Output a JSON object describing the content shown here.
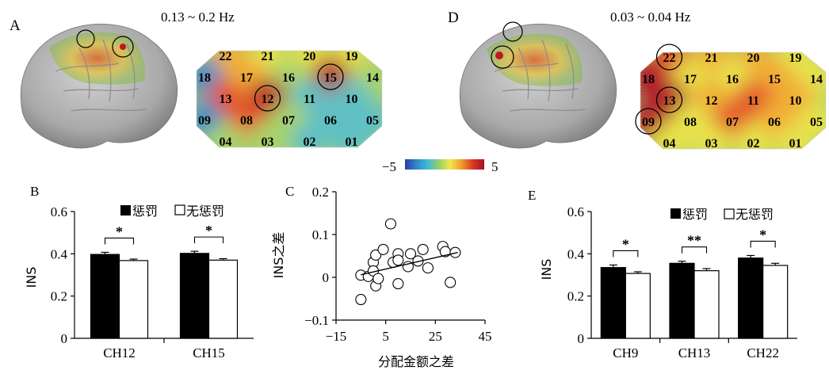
{
  "panels": {
    "A": {
      "letter": "A",
      "band": "0.13 ~ 0.2 Hz",
      "highlighted": [
        "12",
        "15"
      ],
      "hot": {
        "15": 1.0,
        "12": 1.0,
        "13": 0.6,
        "08": 0.65,
        "17": 0.55,
        "22": 0.45,
        "21": 0.3,
        "20": 0.35,
        "19": 0.3,
        "18": -0.4,
        "16": 0.05,
        "11": -0.1,
        "10": -0.15,
        "07": 0.1,
        "06": -0.2,
        "09": -0.5,
        "05": -0.3,
        "04": 0.05,
        "03": 0.15,
        "02": -0.1,
        "01": -0.2,
        "14": 0.0
      }
    },
    "D": {
      "letter": "D",
      "band": "0.03 ~ 0.04 Hz",
      "highlighted": [
        "22",
        "13",
        "09"
      ],
      "hot": {
        "13": 1.0,
        "18": 0.95,
        "09": 0.9,
        "22": 0.7,
        "12": 0.45,
        "11": 0.7,
        "07": 0.65,
        "06": 0.55,
        "10": 0.55,
        "15": 0.4,
        "16": 0.3,
        "14": 0.2,
        "17": 0.3,
        "21": 0.55,
        "20": 0.45,
        "19": 0.35,
        "08": 0.2,
        "04": 0.35,
        "03": 0.3,
        "02": 0.35,
        "01": 0.25,
        "05": 0.2
      }
    }
  },
  "colorbar": {
    "min": "−5",
    "max": "5",
    "colors": [
      "#2b3fa6",
      "#2f86c9",
      "#3fbcd1",
      "#98d06a",
      "#f2e64a",
      "#f29a2e",
      "#d83820",
      "#a3122a"
    ]
  },
  "channel_labels": [
    "22",
    "21",
    "20",
    "19",
    "18",
    "17",
    "16",
    "15",
    "14",
    "13",
    "12",
    "11",
    "10",
    "09",
    "08",
    "07",
    "06",
    "05",
    "04",
    "03",
    "02",
    "01"
  ],
  "legend": {
    "punish": "惩罚",
    "no_punish": "无惩罚"
  },
  "colors": {
    "punish": "#000000",
    "no_punish": "#ffffff"
  },
  "chart_data": [
    {
      "panel": "B",
      "type": "bar",
      "ylabel": "INS",
      "ylim": [
        0,
        0.6
      ],
      "yticks": [
        "0",
        "0.2",
        "0.4",
        "0.6"
      ],
      "categories": [
        "CH12",
        "CH15"
      ],
      "series": [
        {
          "name": "惩罚",
          "values": [
            0.397,
            0.402
          ],
          "errors": [
            0.01,
            0.01
          ]
        },
        {
          "name": "无惩罚",
          "values": [
            0.368,
            0.37
          ],
          "errors": [
            0.007,
            0.007
          ]
        }
      ],
      "significance": [
        "*",
        "*"
      ],
      "legend_position": "top"
    },
    {
      "panel": "C",
      "type": "scatter",
      "xlabel": "分配金额之差",
      "ylabel": "INS之差",
      "xlim": [
        -15,
        45
      ],
      "ylim": [
        -0.1,
        0.2
      ],
      "xticks": [
        "−15",
        "5",
        "25",
        "45"
      ],
      "yticks": [
        "−0.1",
        "0",
        "0.1",
        "0.2"
      ],
      "points": [
        [
          -5,
          0.005
        ],
        [
          -5,
          -0.052
        ],
        [
          -2,
          0.002
        ],
        [
          0,
          0.035
        ],
        [
          0,
          0.015
        ],
        [
          1,
          0.052
        ],
        [
          1,
          -0.02
        ],
        [
          2,
          -0.003
        ],
        [
          4,
          0.065
        ],
        [
          7,
          0.125
        ],
        [
          8,
          0.035
        ],
        [
          10,
          0.055
        ],
        [
          10,
          0.04
        ],
        [
          10,
          -0.015
        ],
        [
          14,
          0.025
        ],
        [
          15,
          0.055
        ],
        [
          18,
          0.038
        ],
        [
          20,
          0.065
        ],
        [
          22,
          0.022
        ],
        [
          28,
          0.072
        ],
        [
          29,
          0.06
        ],
        [
          31,
          -0.012
        ],
        [
          33,
          0.058
        ]
      ],
      "fit_line": {
        "x": [
          -5,
          34
        ],
        "y": [
          0.006,
          0.058
        ]
      }
    },
    {
      "panel": "E",
      "type": "bar",
      "ylabel": "INS",
      "ylim": [
        0,
        0.6
      ],
      "yticks": [
        "0",
        "0.2",
        "0.4",
        "0.6"
      ],
      "categories": [
        "CH9",
        "CH13",
        "CH22"
      ],
      "series": [
        {
          "name": "惩罚",
          "values": [
            0.335,
            0.355,
            0.38
          ],
          "errors": [
            0.012,
            0.01,
            0.012
          ]
        },
        {
          "name": "无惩罚",
          "values": [
            0.307,
            0.32,
            0.345
          ],
          "errors": [
            0.008,
            0.01,
            0.01
          ]
        }
      ],
      "significance": [
        "*",
        "**",
        "*"
      ],
      "legend_position": "top-right"
    }
  ]
}
